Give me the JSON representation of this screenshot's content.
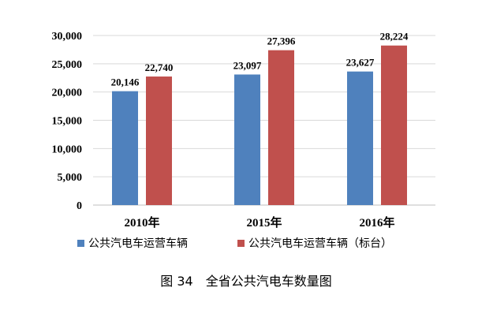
{
  "chart_data": {
    "type": "bar",
    "categories": [
      "2010年",
      "2015年",
      "2016年"
    ],
    "series": [
      {
        "name": "公共汽电车运营车辆",
        "values": [
          20146,
          23097,
          23627
        ],
        "labels": [
          "20,146",
          "23,097",
          "23,627"
        ],
        "color": "#4F81BD"
      },
      {
        "name": "公共汽电车运营车辆（标台）",
        "values": [
          22740,
          27396,
          28224
        ],
        "labels": [
          "22,740",
          "27,396",
          "28,224"
        ],
        "color": "#C0504D"
      }
    ],
    "ylim": [
      0,
      30000
    ],
    "yticks": [
      "0",
      "5,000",
      "10,000",
      "15,000",
      "20,000",
      "25,000",
      "30,000"
    ],
    "ytick_values": [
      0,
      5000,
      10000,
      15000,
      20000,
      25000,
      30000
    ],
    "grid": true,
    "legend": "bottom",
    "gridline_color": "#D9D9D9",
    "axis_color": "#BFBFBF"
  },
  "caption": "图 34　全省公共汽电车数量图"
}
